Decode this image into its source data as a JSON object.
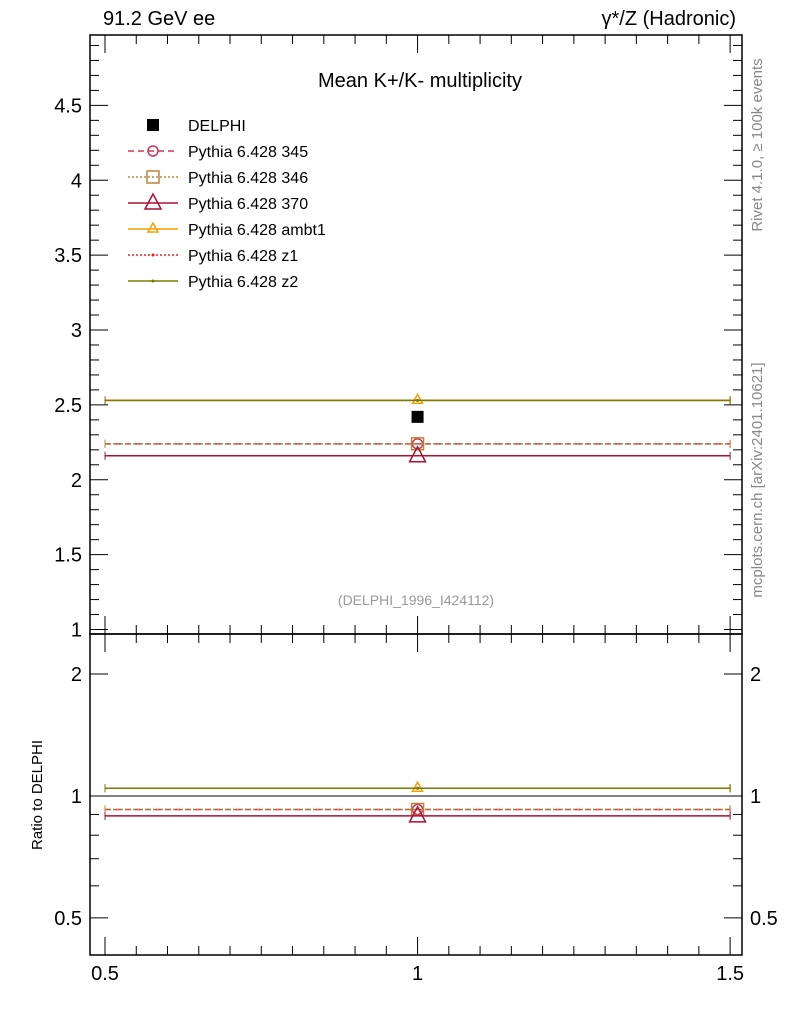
{
  "header": {
    "left": "91.2 GeV ee",
    "right": "γ*/Z (Hadronic)"
  },
  "side_label_top": "Rivet 4.1.0, ≥ 100k events",
  "side_label_bottom": "mcplots.cern.ch [arXiv:2401.10621]",
  "chart_data": [
    {
      "type": "scatter",
      "title": "Mean K+/K- multiplicity",
      "annotation": "(DELPHI_1996_I424112)",
      "xlim": [
        0.476,
        1.519
      ],
      "ylim": [
        0.97,
        4.97
      ],
      "yticks": [
        1,
        1.5,
        2,
        2.5,
        3,
        3.5,
        4,
        4.5
      ],
      "legend_position": "top-left",
      "series": [
        {
          "name": "DELPHI",
          "x": [
            1
          ],
          "y": [
            2.42
          ],
          "color": "#000000",
          "style": "data"
        },
        {
          "name": "Pythia 6.428 345",
          "x": [
            1
          ],
          "y": [
            2.24
          ],
          "xerr": 0.5,
          "color": "#cc3355",
          "style": "dashed",
          "marker": "circle"
        },
        {
          "name": "Pythia 6.428 346",
          "x": [
            1
          ],
          "y": [
            2.24
          ],
          "xerr": 0.5,
          "color": "#b8863b",
          "style": "dotted",
          "marker": "square"
        },
        {
          "name": "Pythia 6.428 370",
          "x": [
            1
          ],
          "y": [
            2.16
          ],
          "xerr": 0.5,
          "color": "#aa1133",
          "style": "solid",
          "marker": "triangle"
        },
        {
          "name": "Pythia 6.428 ambt1",
          "x": [
            1
          ],
          "y": [
            2.53
          ],
          "xerr": 0.5,
          "color": "#f0a000",
          "style": "solid",
          "marker": "triangle-small"
        },
        {
          "name": "Pythia 6.428 z1",
          "x": [
            1
          ],
          "y": [
            2.53
          ],
          "xerr": 0.5,
          "color": "#ee2222",
          "style": "dotted",
          "marker": "dot"
        },
        {
          "name": "Pythia 6.428 z2",
          "x": [
            1
          ],
          "y": [
            2.53
          ],
          "xerr": 0.5,
          "color": "#7a7a00",
          "style": "solid",
          "marker": "dot"
        }
      ]
    },
    {
      "type": "scatter",
      "ylabel": "Ratio to DELPHI",
      "yscale": "log",
      "xlim": [
        0.476,
        1.519
      ],
      "ylim": [
        0.405,
        2.51
      ],
      "yticks": [
        0.5,
        1,
        2
      ],
      "xticks": [
        0.5,
        1,
        1.5
      ],
      "series": [
        {
          "name": "Pythia 6.428 345",
          "y": [
            0.926
          ]
        },
        {
          "name": "Pythia 6.428 346",
          "y": [
            0.926
          ]
        },
        {
          "name": "Pythia 6.428 370",
          "y": [
            0.893
          ]
        },
        {
          "name": "Pythia 6.428 ambt1",
          "y": [
            1.045
          ]
        },
        {
          "name": "Pythia 6.428 z1",
          "y": [
            1.045
          ]
        },
        {
          "name": "Pythia 6.428 z2",
          "y": [
            1.045
          ]
        }
      ]
    }
  ]
}
